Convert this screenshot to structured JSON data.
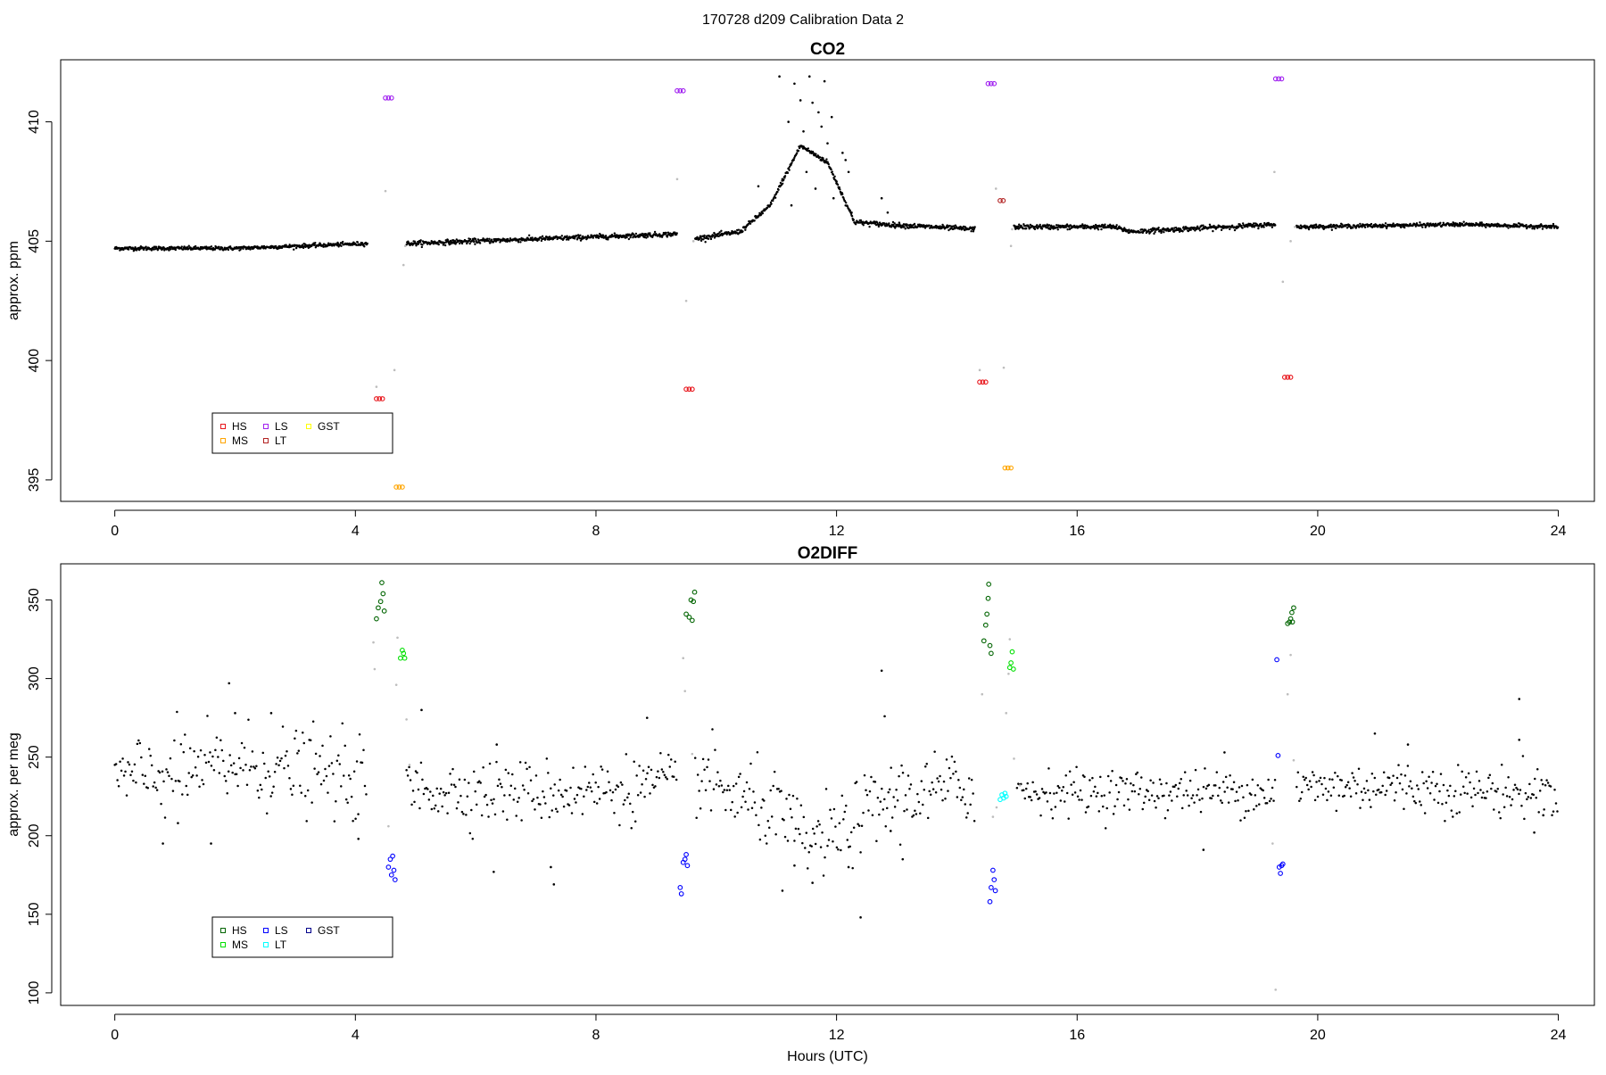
{
  "figure_title": "170728   d209   Calibration Data 2",
  "colors": {
    "ambient": "#000000",
    "excluded": "#bdbdbd",
    "co2_HS": "#e8151b",
    "co2_MS": "#ffa500",
    "co2_LS": "#a020f0",
    "co2_LT": "#b22222",
    "co2_GST": "#ffff00",
    "o2_HS": "#006400",
    "o2_MS": "#00e000",
    "o2_LS": "#0000ff",
    "o2_LT": "#00ffff",
    "o2_GST": "#00008b"
  },
  "chart_data": [
    {
      "type": "scatter",
      "title": "CO2",
      "xlabel": "",
      "ylabel": "approx. ppm",
      "xlim": [
        -0.9,
        24.6
      ],
      "ylim": [
        394.1,
        412.6
      ],
      "x_ticks": [
        0,
        4,
        8,
        12,
        16,
        20,
        24
      ],
      "y_ticks": [
        395,
        400,
        405,
        410
      ],
      "legend": {
        "placement": "bottom-left",
        "entries": [
          {
            "label": "HS",
            "color": "#e8151b"
          },
          {
            "label": "MS",
            "color": "#ffa500"
          },
          {
            "label": "LS",
            "color": "#a020f0"
          },
          {
            "label": "LT",
            "color": "#b22222"
          },
          {
            "label": "GST",
            "color": "#ffff00"
          }
        ]
      },
      "ambient_segments": [
        {
          "x": [
            0.0,
            2.0,
            4.2
          ],
          "y": [
            404.7,
            404.7,
            404.9
          ],
          "noise": 0.04
        },
        {
          "x": [
            4.85,
            9.35
          ],
          "y": [
            404.9,
            405.3
          ],
          "noise": 0.05
        },
        {
          "x": [
            9.65,
            10.4,
            10.9,
            11.4,
            11.85,
            12.3,
            12.8,
            14.3
          ],
          "y": [
            405.1,
            405.4,
            406.5,
            409.0,
            408.3,
            405.8,
            405.7,
            405.5
          ],
          "noise": 0.05
        },
        {
          "x": [
            14.95,
            16.6,
            16.9,
            19.3
          ],
          "y": [
            405.6,
            405.6,
            405.4,
            405.7
          ],
          "noise": 0.05
        },
        {
          "x": [
            19.65,
            22.4,
            24.0
          ],
          "y": [
            405.6,
            405.7,
            405.6
          ],
          "noise": 0.04
        }
      ],
      "ambient_outliers": [
        {
          "x": 11.05,
          "y": 411.9
        },
        {
          "x": 11.3,
          "y": 411.6
        },
        {
          "x": 11.55,
          "y": 411.9
        },
        {
          "x": 11.7,
          "y": 410.4
        },
        {
          "x": 11.8,
          "y": 411.7
        },
        {
          "x": 11.92,
          "y": 410.2
        },
        {
          "x": 11.2,
          "y": 410.0
        },
        {
          "x": 11.45,
          "y": 409.6
        },
        {
          "x": 11.75,
          "y": 409.8
        },
        {
          "x": 11.6,
          "y": 410.8
        },
        {
          "x": 11.35,
          "y": 408.8
        },
        {
          "x": 11.1,
          "y": 407.6
        },
        {
          "x": 11.65,
          "y": 407.2
        },
        {
          "x": 11.25,
          "y": 406.5
        },
        {
          "x": 12.0,
          "y": 407.5
        },
        {
          "x": 12.1,
          "y": 408.7
        },
        {
          "x": 12.15,
          "y": 408.4
        },
        {
          "x": 12.2,
          "y": 407.9
        },
        {
          "x": 11.5,
          "y": 407.9
        },
        {
          "x": 11.95,
          "y": 406.8
        },
        {
          "x": 12.25,
          "y": 406.2
        },
        {
          "x": 10.7,
          "y": 407.3
        },
        {
          "x": 12.75,
          "y": 406.8
        },
        {
          "x": 12.85,
          "y": 406.2
        },
        {
          "x": 11.85,
          "y": 409.1
        },
        {
          "x": 11.4,
          "y": 410.9
        }
      ],
      "excluded": [
        {
          "x": 4.35,
          "y": 398.9
        },
        {
          "x": 4.5,
          "y": 407.1
        },
        {
          "x": 4.65,
          "y": 399.6
        },
        {
          "x": 4.8,
          "y": 404.0
        },
        {
          "x": 4.83,
          "y": 404.8
        },
        {
          "x": 9.35,
          "y": 407.6
        },
        {
          "x": 9.5,
          "y": 402.5
        },
        {
          "x": 9.62,
          "y": 405.0
        },
        {
          "x": 14.38,
          "y": 399.6
        },
        {
          "x": 14.65,
          "y": 407.2
        },
        {
          "x": 14.78,
          "y": 399.7
        },
        {
          "x": 14.9,
          "y": 404.8
        },
        {
          "x": 14.92,
          "y": 405.5
        },
        {
          "x": 19.28,
          "y": 407.9
        },
        {
          "x": 19.42,
          "y": 403.3
        },
        {
          "x": 19.55,
          "y": 405.0
        },
        {
          "x": 19.62,
          "y": 405.6
        }
      ],
      "calibration_series": [
        {
          "name": "HS",
          "points": [
            {
              "x": 4.35,
              "y": 398.4
            },
            {
              "x": 4.4,
              "y": 398.4
            },
            {
              "x": 4.45,
              "y": 398.4
            },
            {
              "x": 9.5,
              "y": 398.8
            },
            {
              "x": 9.55,
              "y": 398.8
            },
            {
              "x": 9.6,
              "y": 398.8
            },
            {
              "x": 14.38,
              "y": 399.1
            },
            {
              "x": 14.43,
              "y": 399.1
            },
            {
              "x": 14.48,
              "y": 399.1
            },
            {
              "x": 19.45,
              "y": 399.3
            },
            {
              "x": 19.5,
              "y": 399.3
            },
            {
              "x": 19.55,
              "y": 399.3
            }
          ]
        },
        {
          "name": "MS",
          "points": [
            {
              "x": 4.68,
              "y": 394.7
            },
            {
              "x": 4.73,
              "y": 394.7
            },
            {
              "x": 4.78,
              "y": 394.7
            },
            {
              "x": 14.8,
              "y": 395.5
            },
            {
              "x": 14.85,
              "y": 395.5
            },
            {
              "x": 14.9,
              "y": 395.5
            }
          ]
        },
        {
          "name": "LS",
          "points": [
            {
              "x": 4.5,
              "y": 411.0
            },
            {
              "x": 4.55,
              "y": 411.0
            },
            {
              "x": 4.6,
              "y": 411.0
            },
            {
              "x": 9.35,
              "y": 411.3
            },
            {
              "x": 9.4,
              "y": 411.3
            },
            {
              "x": 9.45,
              "y": 411.3
            },
            {
              "x": 14.52,
              "y": 411.6
            },
            {
              "x": 14.57,
              "y": 411.6
            },
            {
              "x": 14.62,
              "y": 411.6
            },
            {
              "x": 19.3,
              "y": 411.8
            },
            {
              "x": 19.35,
              "y": 411.8
            },
            {
              "x": 19.4,
              "y": 411.8
            }
          ]
        },
        {
          "name": "LT",
          "points": [
            {
              "x": 14.72,
              "y": 406.7
            },
            {
              "x": 14.77,
              "y": 406.7
            }
          ]
        },
        {
          "name": "GST",
          "points": []
        }
      ]
    },
    {
      "type": "scatter",
      "title": "O2DIFF",
      "xlabel": "Hours (UTC)",
      "ylabel": "approx. per meg",
      "xlim": [
        -0.9,
        24.6
      ],
      "ylim": [
        92,
        373
      ],
      "x_ticks": [
        0,
        4,
        8,
        12,
        16,
        20,
        24
      ],
      "y_ticks": [
        100,
        150,
        200,
        250,
        300,
        350
      ],
      "legend": {
        "placement": "bottom-left",
        "entries": [
          {
            "label": "HS",
            "color": "#006400"
          },
          {
            "label": "MS",
            "color": "#00e000"
          },
          {
            "label": "LS",
            "color": "#0000ff"
          },
          {
            "label": "LT",
            "color": "#00ffff"
          },
          {
            "label": "GST",
            "color": "#00008b"
          }
        ]
      },
      "ambient_segments": [
        {
          "x": [
            0.0,
            1.0,
            2.0,
            3.0,
            4.2
          ],
          "y": [
            235,
            240,
            245,
            242,
            235
          ],
          "noise": 13
        },
        {
          "x": [
            4.85,
            6.0,
            7.5,
            9.35
          ],
          "y": [
            230,
            228,
            228,
            232
          ],
          "noise": 10
        },
        {
          "x": [
            9.65,
            10.3,
            11.0,
            11.5,
            12.0,
            12.5,
            13.0,
            14.3
          ],
          "y": [
            240,
            225,
            215,
            195,
            200,
            215,
            225,
            232
          ],
          "noise": 12
        },
        {
          "x": [
            15.0,
            17.0,
            19.3
          ],
          "y": [
            228,
            228,
            228
          ],
          "noise": 7
        },
        {
          "x": [
            19.65,
            21.0,
            23.0,
            24.0
          ],
          "y": [
            230,
            232,
            228,
            228
          ],
          "noise": 8
        }
      ],
      "ambient_outliers": [
        {
          "x": 1.9,
          "y": 297
        },
        {
          "x": 2.0,
          "y": 278
        },
        {
          "x": 2.6,
          "y": 278
        },
        {
          "x": 0.8,
          "y": 195
        },
        {
          "x": 1.6,
          "y": 195
        },
        {
          "x": 1.05,
          "y": 208
        },
        {
          "x": 5.1,
          "y": 280
        },
        {
          "x": 4.05,
          "y": 198
        },
        {
          "x": 6.3,
          "y": 177
        },
        {
          "x": 6.35,
          "y": 258
        },
        {
          "x": 7.25,
          "y": 180
        },
        {
          "x": 7.3,
          "y": 169
        },
        {
          "x": 8.85,
          "y": 275
        },
        {
          "x": 12.4,
          "y": 148
        },
        {
          "x": 12.75,
          "y": 305
        },
        {
          "x": 12.8,
          "y": 276
        },
        {
          "x": 13.1,
          "y": 185
        },
        {
          "x": 12.9,
          "y": 203
        },
        {
          "x": 11.1,
          "y": 165
        },
        {
          "x": 11.6,
          "y": 170
        },
        {
          "x": 18.1,
          "y": 191
        },
        {
          "x": 18.45,
          "y": 253
        },
        {
          "x": 20.95,
          "y": 265
        },
        {
          "x": 21.5,
          "y": 258
        },
        {
          "x": 23.35,
          "y": 287
        },
        {
          "x": 23.35,
          "y": 261
        },
        {
          "x": 23.6,
          "y": 202
        },
        {
          "x": 23.75,
          "y": 213
        },
        {
          "x": 11.3,
          "y": 181
        },
        {
          "x": 12.2,
          "y": 180
        }
      ],
      "excluded": [
        {
          "x": 4.3,
          "y": 323
        },
        {
          "x": 4.32,
          "y": 306
        },
        {
          "x": 4.55,
          "y": 206
        },
        {
          "x": 4.68,
          "y": 296
        },
        {
          "x": 4.7,
          "y": 326
        },
        {
          "x": 4.85,
          "y": 274
        },
        {
          "x": 4.9,
          "y": 245
        },
        {
          "x": 9.45,
          "y": 313
        },
        {
          "x": 9.48,
          "y": 292
        },
        {
          "x": 9.6,
          "y": 252
        },
        {
          "x": 14.42,
          "y": 290
        },
        {
          "x": 14.6,
          "y": 212
        },
        {
          "x": 14.66,
          "y": 218
        },
        {
          "x": 14.82,
          "y": 278
        },
        {
          "x": 14.86,
          "y": 303
        },
        {
          "x": 14.88,
          "y": 325
        },
        {
          "x": 14.95,
          "y": 249
        },
        {
          "x": 15.05,
          "y": 232
        },
        {
          "x": 19.25,
          "y": 195
        },
        {
          "x": 19.3,
          "y": 102
        },
        {
          "x": 19.5,
          "y": 290
        },
        {
          "x": 19.55,
          "y": 315
        },
        {
          "x": 19.6,
          "y": 248
        }
      ],
      "calibration_series": [
        {
          "name": "HS",
          "points": [
            {
              "x": 4.35,
              "y": 338
            },
            {
              "x": 4.38,
              "y": 345
            },
            {
              "x": 4.42,
              "y": 349
            },
            {
              "x": 4.44,
              "y": 361
            },
            {
              "x": 4.46,
              "y": 354
            },
            {
              "x": 4.48,
              "y": 343
            },
            {
              "x": 9.5,
              "y": 341
            },
            {
              "x": 9.55,
              "y": 339
            },
            {
              "x": 9.6,
              "y": 337
            },
            {
              "x": 9.62,
              "y": 349
            },
            {
              "x": 9.64,
              "y": 355
            },
            {
              "x": 9.58,
              "y": 350
            },
            {
              "x": 14.45,
              "y": 324
            },
            {
              "x": 14.48,
              "y": 334
            },
            {
              "x": 14.5,
              "y": 341
            },
            {
              "x": 14.52,
              "y": 351
            },
            {
              "x": 14.53,
              "y": 360
            },
            {
              "x": 14.55,
              "y": 321
            },
            {
              "x": 14.57,
              "y": 316
            },
            {
              "x": 19.5,
              "y": 335
            },
            {
              "x": 19.53,
              "y": 336
            },
            {
              "x": 19.55,
              "y": 338
            },
            {
              "x": 19.57,
              "y": 342
            },
            {
              "x": 19.6,
              "y": 345
            },
            {
              "x": 19.58,
              "y": 336
            }
          ]
        },
        {
          "name": "MS",
          "points": [
            {
              "x": 4.75,
              "y": 313
            },
            {
              "x": 4.78,
              "y": 318
            },
            {
              "x": 4.8,
              "y": 316
            },
            {
              "x": 4.82,
              "y": 313
            },
            {
              "x": 14.88,
              "y": 307
            },
            {
              "x": 14.9,
              "y": 310
            },
            {
              "x": 14.92,
              "y": 317
            },
            {
              "x": 14.94,
              "y": 306
            }
          ]
        },
        {
          "name": "LS",
          "points": [
            {
              "x": 4.55,
              "y": 180
            },
            {
              "x": 4.58,
              "y": 185
            },
            {
              "x": 4.6,
              "y": 175
            },
            {
              "x": 4.62,
              "y": 187
            },
            {
              "x": 4.64,
              "y": 178
            },
            {
              "x": 4.66,
              "y": 172
            },
            {
              "x": 9.4,
              "y": 167
            },
            {
              "x": 9.42,
              "y": 163
            },
            {
              "x": 9.45,
              "y": 183
            },
            {
              "x": 9.48,
              "y": 185
            },
            {
              "x": 9.5,
              "y": 188
            },
            {
              "x": 9.52,
              "y": 181
            },
            {
              "x": 14.55,
              "y": 158
            },
            {
              "x": 14.57,
              "y": 167
            },
            {
              "x": 14.6,
              "y": 178
            },
            {
              "x": 14.62,
              "y": 172
            },
            {
              "x": 14.64,
              "y": 165
            },
            {
              "x": 19.32,
              "y": 312
            },
            {
              "x": 19.34,
              "y": 251
            },
            {
              "x": 19.36,
              "y": 180
            },
            {
              "x": 19.38,
              "y": 176
            },
            {
              "x": 19.4,
              "y": 181
            },
            {
              "x": 19.42,
              "y": 182
            }
          ]
        },
        {
          "name": "LT",
          "points": [
            {
              "x": 14.72,
              "y": 223
            },
            {
              "x": 14.75,
              "y": 226
            },
            {
              "x": 14.78,
              "y": 224
            },
            {
              "x": 14.8,
              "y": 227
            },
            {
              "x": 14.82,
              "y": 225
            }
          ]
        },
        {
          "name": "GST",
          "points": []
        }
      ]
    }
  ]
}
